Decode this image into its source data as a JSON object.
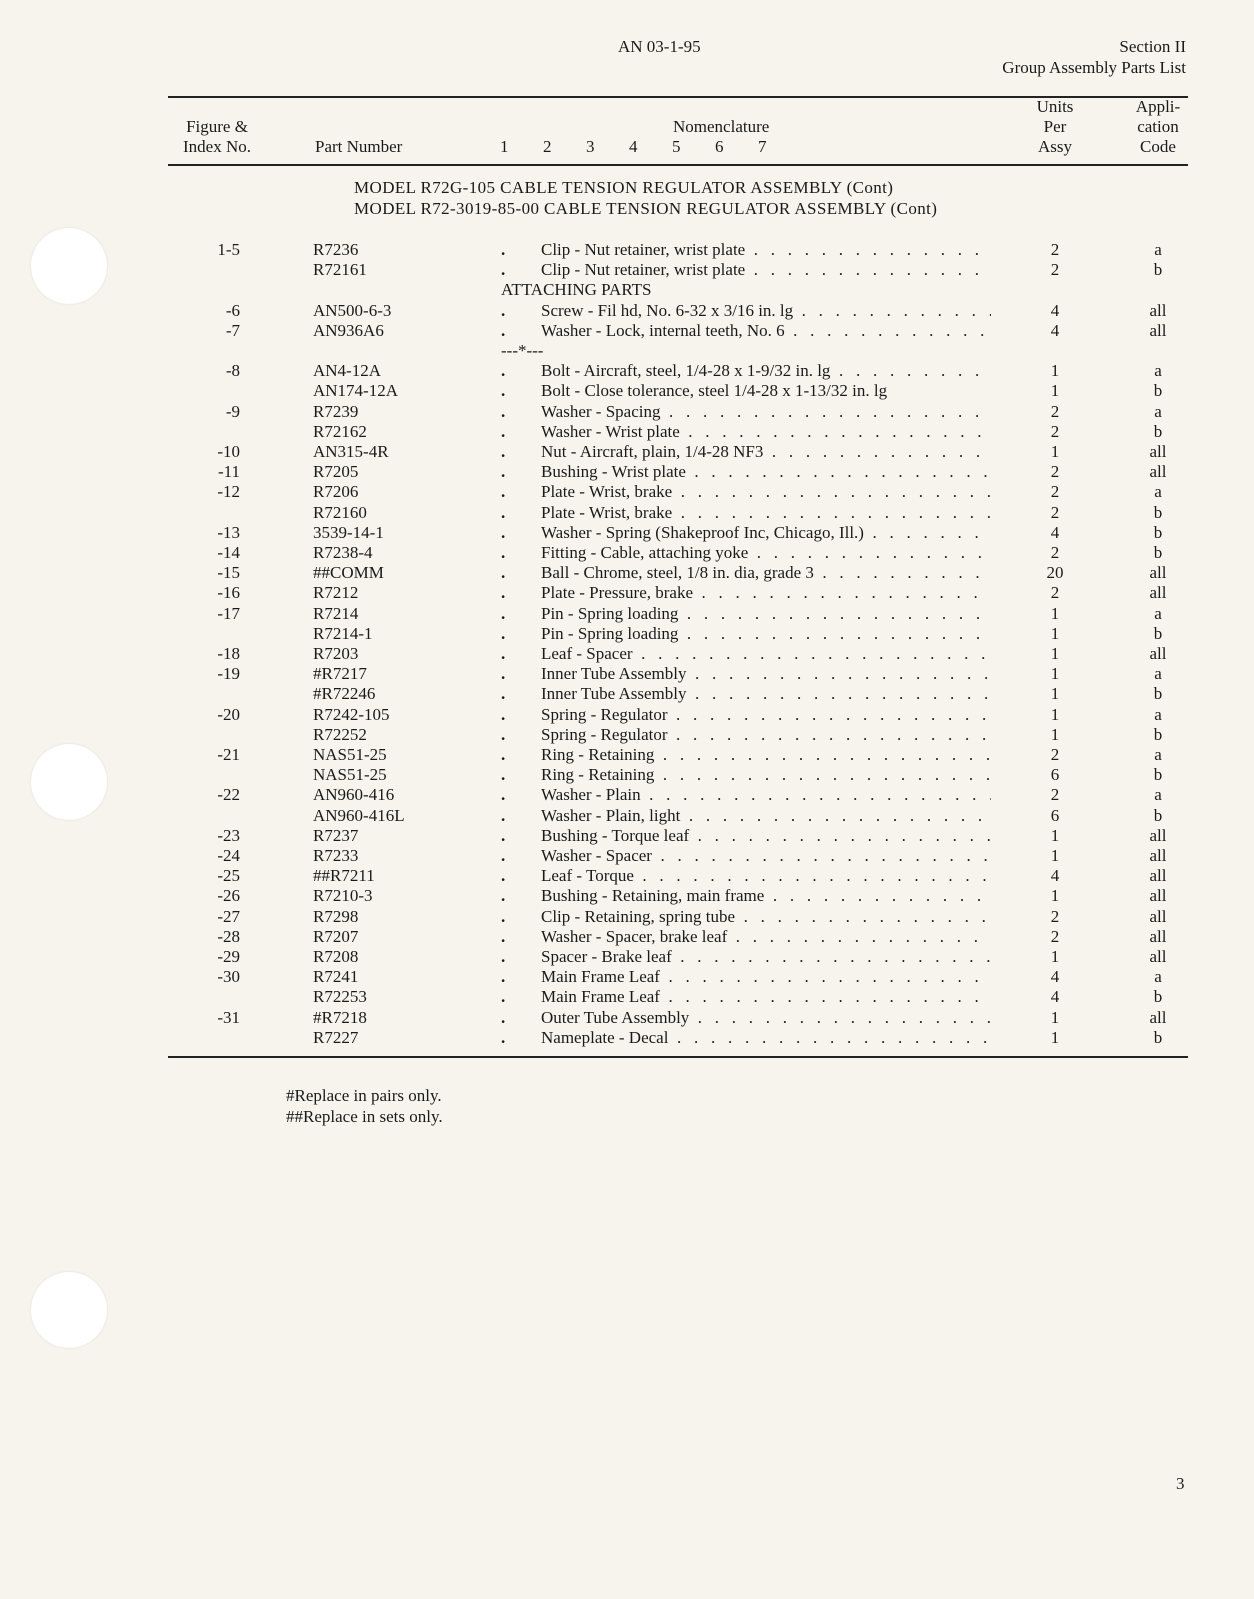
{
  "header": {
    "doc_number": "AN 03-1-95",
    "section": "Section II",
    "section_title": "Group Assembly Parts List"
  },
  "columns": {
    "figure_index": [
      "Figure &",
      "Index No."
    ],
    "part_number": "Part Number",
    "indent_levels": "1  2  3  4  5  6  7",
    "nomenclature": "Nomenclature",
    "units": [
      "Units",
      "Per",
      "Assy"
    ],
    "application": [
      "Appli-",
      "cation",
      "Code"
    ]
  },
  "titles": [
    "MODEL R72G-105 CABLE TENSION REGULATOR ASSEMBLY (Cont)",
    "MODEL R72-3019-85-00 CABLE TENSION REGULATOR ASSEMBLY (Cont)"
  ],
  "rows": [
    {
      "index": "1-5",
      "part": "R7236",
      "desc": "Clip - Nut retainer, wrist plate",
      "units": "2",
      "code": "a"
    },
    {
      "index": "",
      "part": "R72161",
      "desc": "Clip - Nut retainer, wrist plate",
      "units": "2",
      "code": "b"
    },
    {
      "heading": "ATTACHING PARTS"
    },
    {
      "index": "-6",
      "part": "AN500-6-3",
      "desc": "Screw - Fil hd, No. 6-32 x 3/16 in. lg",
      "units": "4",
      "code": "all"
    },
    {
      "index": "-7",
      "part": "AN936A6",
      "desc": "Washer - Lock, internal teeth, No. 6",
      "units": "4",
      "code": "all"
    },
    {
      "heading": "---*---"
    },
    {
      "index": "-8",
      "part": "AN4-12A",
      "desc": "Bolt - Aircraft, steel, 1/4-28 x 1-9/32 in. lg",
      "units": "1",
      "code": "a"
    },
    {
      "index": "",
      "part": "AN174-12A",
      "desc": "Bolt - Close tolerance, steel 1/4-28 x 1-13/32 in. lg",
      "units": "1",
      "code": "b",
      "nolead": true
    },
    {
      "index": "-9",
      "part": "R7239",
      "desc": "Washer - Spacing",
      "units": "2",
      "code": "a"
    },
    {
      "index": "",
      "part": "R72162",
      "desc": "Washer - Wrist plate",
      "units": "2",
      "code": "b"
    },
    {
      "index": "-10",
      "part": "AN315-4R",
      "desc": "Nut - Aircraft, plain, 1/4-28 NF3",
      "units": "1",
      "code": "all"
    },
    {
      "index": "-11",
      "part": "R7205",
      "desc": "Bushing - Wrist plate",
      "units": "2",
      "code": "all"
    },
    {
      "index": "-12",
      "part": "R7206",
      "desc": "Plate - Wrist, brake",
      "units": "2",
      "code": "a"
    },
    {
      "index": "",
      "part": "R72160",
      "desc": "Plate - Wrist, brake",
      "units": "2",
      "code": "b"
    },
    {
      "index": "-13",
      "part": "3539-14-1",
      "desc": "Washer - Spring (Shakeproof Inc, Chicago, Ill.)",
      "units": "4",
      "code": "b"
    },
    {
      "index": "-14",
      "part": "R7238-4",
      "desc": "Fitting - Cable, attaching yoke",
      "units": "2",
      "code": "b"
    },
    {
      "index": "-15",
      "part": "##COMM",
      "desc": "Ball - Chrome, steel, 1/8 in. dia, grade 3",
      "units": "20",
      "code": "all"
    },
    {
      "index": "-16",
      "part": "R7212",
      "desc": "Plate - Pressure, brake",
      "units": "2",
      "code": "all"
    },
    {
      "index": "-17",
      "part": "R7214",
      "desc": "Pin - Spring loading",
      "units": "1",
      "code": "a"
    },
    {
      "index": "",
      "part": "R7214-1",
      "desc": "Pin - Spring loading",
      "units": "1",
      "code": "b"
    },
    {
      "index": "-18",
      "part": "R7203",
      "desc": "Leaf - Spacer",
      "units": "1",
      "code": "all"
    },
    {
      "index": "-19",
      "part": "#R7217",
      "desc": "Inner Tube Assembly",
      "units": "1",
      "code": "a"
    },
    {
      "index": "",
      "part": "#R72246",
      "desc": "Inner Tube Assembly",
      "units": "1",
      "code": "b"
    },
    {
      "index": "-20",
      "part": "R7242-105",
      "desc": "Spring - Regulator",
      "units": "1",
      "code": "a"
    },
    {
      "index": "",
      "part": "R72252",
      "desc": "Spring - Regulator",
      "units": "1",
      "code": "b"
    },
    {
      "index": "-21",
      "part": "NAS51-25",
      "desc": "Ring - Retaining",
      "units": "2",
      "code": "a"
    },
    {
      "index": "",
      "part": "NAS51-25",
      "desc": "Ring - Retaining",
      "units": "6",
      "code": "b"
    },
    {
      "index": "-22",
      "part": "AN960-416",
      "desc": "Washer - Plain",
      "units": "2",
      "code": "a"
    },
    {
      "index": "",
      "part": "AN960-416L",
      "desc": "Washer - Plain, light",
      "units": "6",
      "code": "b"
    },
    {
      "index": "-23",
      "part": "R7237",
      "desc": "Bushing - Torque leaf",
      "units": "1",
      "code": "all"
    },
    {
      "index": "-24",
      "part": "R7233",
      "desc": "Washer - Spacer",
      "units": "1",
      "code": "all"
    },
    {
      "index": "-25",
      "part": "##R7211",
      "desc": "Leaf - Torque",
      "units": "4",
      "code": "all"
    },
    {
      "index": "-26",
      "part": "R7210-3",
      "desc": "Bushing - Retaining, main frame",
      "units": "1",
      "code": "all"
    },
    {
      "index": "-27",
      "part": "R7298",
      "desc": "Clip - Retaining, spring tube",
      "units": "2",
      "code": "all"
    },
    {
      "index": "-28",
      "part": "R7207",
      "desc": "Washer - Spacer, brake leaf",
      "units": "2",
      "code": "all"
    },
    {
      "index": "-29",
      "part": "R7208",
      "desc": "Spacer - Brake leaf",
      "units": "1",
      "code": "all"
    },
    {
      "index": "-30",
      "part": "R7241",
      "desc": "Main Frame Leaf",
      "units": "4",
      "code": "a"
    },
    {
      "index": "",
      "part": "R72253",
      "desc": "Main Frame Leaf",
      "units": "4",
      "code": "b"
    },
    {
      "index": "-31",
      "part": "#R7218",
      "desc": "Outer Tube Assembly",
      "units": "1",
      "code": "all"
    },
    {
      "index": "",
      "part": "R7227",
      "desc": "Nameplate - Decal",
      "units": "1",
      "code": "b"
    }
  ],
  "footnotes": [
    "#Replace in pairs only.",
    "##Replace in sets only."
  ],
  "page_number": "3"
}
